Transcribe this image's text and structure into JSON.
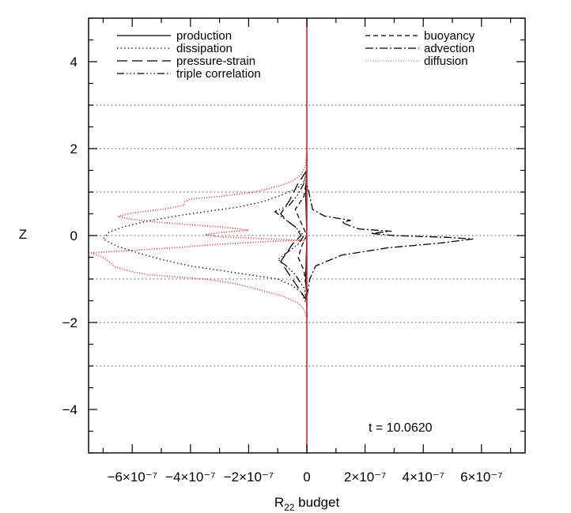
{
  "chart_data": {
    "type": "line",
    "title": "",
    "xlabel": "R",
    "xlabel_sub": "22",
    "xlabel_suffix": " budget",
    "ylabel": "Z",
    "xlim": [
      -7.5e-07,
      7.5e-07
    ],
    "ylim": [
      -5,
      5
    ],
    "x_ticks": [
      {
        "value": -6e-07,
        "label": "−6×10⁻⁷"
      },
      {
        "value": -4e-07,
        "label": "−4×10⁻⁷"
      },
      {
        "value": -2e-07,
        "label": "−2×10⁻⁷"
      },
      {
        "value": 0,
        "label": "0"
      },
      {
        "value": 2e-07,
        "label": "2×10⁻⁷"
      },
      {
        "value": 4e-07,
        "label": "4×10⁻⁷"
      },
      {
        "value": 6e-07,
        "label": "6×10⁻⁷"
      }
    ],
    "y_ticks": [
      {
        "value": -4,
        "label": "−4"
      },
      {
        "value": -2,
        "label": "−2"
      },
      {
        "value": 0,
        "label": "0"
      },
      {
        "value": 2,
        "label": "2"
      },
      {
        "value": 4,
        "label": "4"
      }
    ],
    "reference_lines_y": [
      -3,
      -2,
      -1,
      0,
      1,
      2,
      3
    ],
    "reference_line_x": 0,
    "reference_line_x_color": "#d62728",
    "legend_placement": "top",
    "legend_left": [
      {
        "name": "production",
        "style": "solid"
      },
      {
        "name": "dissipation",
        "style": "dotted"
      },
      {
        "name": "pressure-strain",
        "style": "longdash"
      },
      {
        "name": "triple correlation",
        "style": "dashdotdot"
      }
    ],
    "legend_right": [
      {
        "name": "buoyancy",
        "style": "dashed"
      },
      {
        "name": "advection",
        "style": "dashdot"
      },
      {
        "name": "diffusion",
        "style": "finedot"
      }
    ],
    "annotation": "t  =  10.0620",
    "series": [
      {
        "name": "production",
        "color": "#000000",
        "points": [
          [
            0,
            -1.9
          ],
          [
            0,
            -1.5
          ],
          [
            -4e-09,
            -1.0
          ],
          [
            -2e-09,
            -0.5
          ],
          [
            0,
            0
          ],
          [
            -2e-09,
            0.5
          ],
          [
            -4e-09,
            1.0
          ],
          [
            0,
            1.5
          ],
          [
            0,
            1.9
          ]
        ]
      },
      {
        "name": "diffusion",
        "color": "#d62728",
        "points": [
          [
            0,
            -1.9
          ],
          [
            -1e-08,
            -1.7
          ],
          [
            -3e-08,
            -1.55
          ],
          [
            -8e-08,
            -1.4
          ],
          [
            -1.6e-07,
            -1.25
          ],
          [
            -2.5e-07,
            -1.1
          ],
          [
            -3.5e-07,
            -1.0
          ],
          [
            -4.5e-07,
            -0.95
          ],
          [
            -5.5e-07,
            -0.9
          ],
          [
            -6.2e-07,
            -0.8
          ],
          [
            -6.6e-07,
            -0.72
          ],
          [
            -6.8e-07,
            -0.6
          ],
          [
            -7e-07,
            -0.5
          ],
          [
            -7.2e-07,
            -0.45
          ],
          [
            -7.4e-07,
            -0.4
          ],
          [
            -7e-07,
            -0.38
          ],
          [
            -6e-07,
            -0.34
          ],
          [
            -5e-07,
            -0.3
          ],
          [
            -4e-07,
            -0.25
          ],
          [
            -3e-07,
            -0.2
          ],
          [
            -1.5e-07,
            -0.14
          ],
          [
            -1e-08,
            -0.11
          ],
          [
            -1.5e-07,
            -0.07
          ],
          [
            -3e-07,
            -0.03
          ],
          [
            -3.5e-07,
            0.02
          ],
          [
            -3e-07,
            0.07
          ],
          [
            -2e-07,
            0.12
          ],
          [
            -2.4e-07,
            0.16
          ],
          [
            -3e-07,
            0.2
          ],
          [
            -4e-07,
            0.25
          ],
          [
            -5e-07,
            0.3
          ],
          [
            -6e-07,
            0.37
          ],
          [
            -6.5e-07,
            0.44
          ],
          [
            -6e-07,
            0.52
          ],
          [
            -4.8e-07,
            0.62
          ],
          [
            -4.2e-07,
            0.7
          ],
          [
            -4.2e-07,
            0.78
          ],
          [
            -4e-07,
            0.84
          ],
          [
            -3e-07,
            0.9
          ],
          [
            -1.8e-07,
            1.0
          ],
          [
            -9e-08,
            1.15
          ],
          [
            -5e-08,
            1.25
          ],
          [
            -2e-08,
            1.4
          ],
          [
            -5e-09,
            1.6
          ],
          [
            0,
            1.9
          ]
        ]
      },
      {
        "name": "dissipation",
        "color": "#000000",
        "points": [
          [
            0,
            -1.6
          ],
          [
            -2e-08,
            -1.3
          ],
          [
            -5e-08,
            -1.15
          ],
          [
            -1e-07,
            -1.0
          ],
          [
            -2e-07,
            -0.9
          ],
          [
            -3e-07,
            -0.8
          ],
          [
            -4e-07,
            -0.7
          ],
          [
            -5e-07,
            -0.55
          ],
          [
            -5.8e-07,
            -0.4
          ],
          [
            -6.5e-07,
            -0.25
          ],
          [
            -7e-07,
            -0.08
          ],
          [
            -6.8e-07,
            0.08
          ],
          [
            -6.3e-07,
            0.2
          ],
          [
            -5.5e-07,
            0.33
          ],
          [
            -4.5e-07,
            0.45
          ],
          [
            -3.5e-07,
            0.55
          ],
          [
            -2.4e-07,
            0.65
          ],
          [
            -1.5e-07,
            0.78
          ],
          [
            -8e-08,
            0.95
          ],
          [
            -3e-08,
            1.1
          ],
          [
            -1e-08,
            1.25
          ],
          [
            0,
            1.5
          ]
        ]
      },
      {
        "name": "advection",
        "color": "#000000",
        "points": [
          [
            0,
            -1.4
          ],
          [
            1e-08,
            -1.0
          ],
          [
            3e-08,
            -0.7
          ],
          [
            1.2e-07,
            -0.45
          ],
          [
            2.8e-07,
            -0.28
          ],
          [
            4.5e-07,
            -0.18
          ],
          [
            5.7e-07,
            -0.08
          ],
          [
            4.8e-07,
            -0.04
          ],
          [
            3e-07,
            0.0
          ],
          [
            2.2e-07,
            0.05
          ],
          [
            2.9e-07,
            0.1
          ],
          [
            1.8e-07,
            0.15
          ],
          [
            1.5e-07,
            0.22
          ],
          [
            1.2e-07,
            0.3
          ],
          [
            1.5e-07,
            0.35
          ],
          [
            6e-08,
            0.45
          ],
          [
            2e-08,
            0.6
          ],
          [
            0,
            1.2
          ]
        ]
      },
      {
        "name": "pressure-strain",
        "color": "#000000",
        "points": [
          [
            0,
            -1.5
          ],
          [
            -3e-08,
            -1.2
          ],
          [
            -6e-08,
            -0.9
          ],
          [
            -9e-08,
            -0.6
          ],
          [
            -7e-08,
            -0.4
          ],
          [
            -5e-08,
            -0.2
          ],
          [
            -2e-08,
            0.0
          ],
          [
            -4e-08,
            0.2
          ],
          [
            -7e-08,
            0.35
          ],
          [
            -9e-08,
            0.5
          ],
          [
            -6e-08,
            0.8
          ],
          [
            -3e-08,
            1.2
          ],
          [
            0,
            1.5
          ]
        ]
      },
      {
        "name": "triple correlation",
        "color": "#000000",
        "points": [
          [
            0,
            -1.5
          ],
          [
            -1e-08,
            -1.2
          ],
          [
            -4e-08,
            -0.9
          ],
          [
            -7e-08,
            -0.7
          ],
          [
            -1e-07,
            -0.55
          ],
          [
            -7e-08,
            -0.4
          ],
          [
            -3e-08,
            -0.2
          ],
          [
            -1e-08,
            0.0
          ],
          [
            -4e-08,
            0.2
          ],
          [
            -8e-08,
            0.4
          ],
          [
            -1.1e-07,
            0.55
          ],
          [
            -6e-08,
            0.7
          ],
          [
            -3e-08,
            0.95
          ],
          [
            -1e-08,
            1.2
          ],
          [
            0,
            1.5
          ]
        ]
      },
      {
        "name": "buoyancy",
        "color": "#000000",
        "points": [
          [
            0,
            -1.3
          ],
          [
            -1e-08,
            -0.8
          ],
          [
            -3e-08,
            -0.5
          ],
          [
            -1.5e-08,
            -0.2
          ],
          [
            0,
            0.0
          ],
          [
            -2e-08,
            0.3
          ],
          [
            -4e-08,
            0.6
          ],
          [
            -1e-08,
            0.9
          ],
          [
            0,
            1.3
          ]
        ]
      }
    ]
  }
}
